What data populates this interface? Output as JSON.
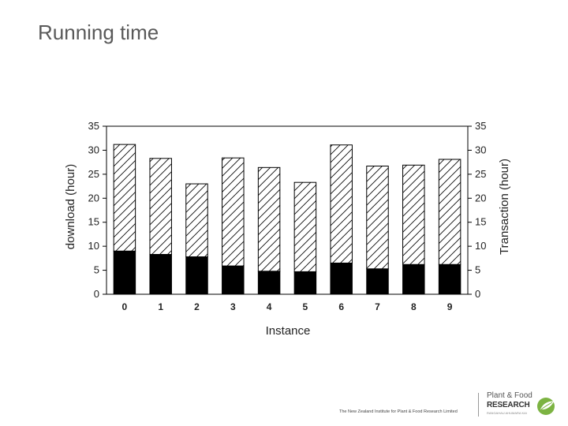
{
  "slide": {
    "title": "Running time",
    "footer": "The New Zealand Institute for Plant & Food Research Limited"
  },
  "logo": {
    "line1": "Plant & Food",
    "line2": "RESEARCH",
    "line3": "RANGAHAU AHUMARA KAI",
    "icon": "leaf-icon"
  },
  "chart_data": {
    "type": "bar",
    "stacked": true,
    "categories": [
      "0",
      "1",
      "2",
      "3",
      "4",
      "5",
      "6",
      "7",
      "8",
      "9"
    ],
    "series": [
      {
        "values": [
          9.0,
          8.3,
          7.8,
          5.9,
          4.8,
          4.7,
          6.5,
          5.3,
          6.2,
          6.2
        ],
        "fill": "solid",
        "color": "#000000"
      },
      {
        "values": [
          22.2,
          20.0,
          15.2,
          22.5,
          21.6,
          18.6,
          24.6,
          21.4,
          20.7,
          21.9
        ],
        "fill": "hatched",
        "color": "#ffffff"
      }
    ],
    "xlabel": "Instance",
    "ylabel": "download (hour)",
    "y2label": "Transaction (hour)",
    "ylim": [
      0,
      35
    ],
    "y2lim": [
      0,
      35
    ],
    "yticks": [
      0,
      5,
      10,
      15,
      20,
      25,
      30,
      35
    ],
    "grid": false,
    "legend": "none"
  }
}
